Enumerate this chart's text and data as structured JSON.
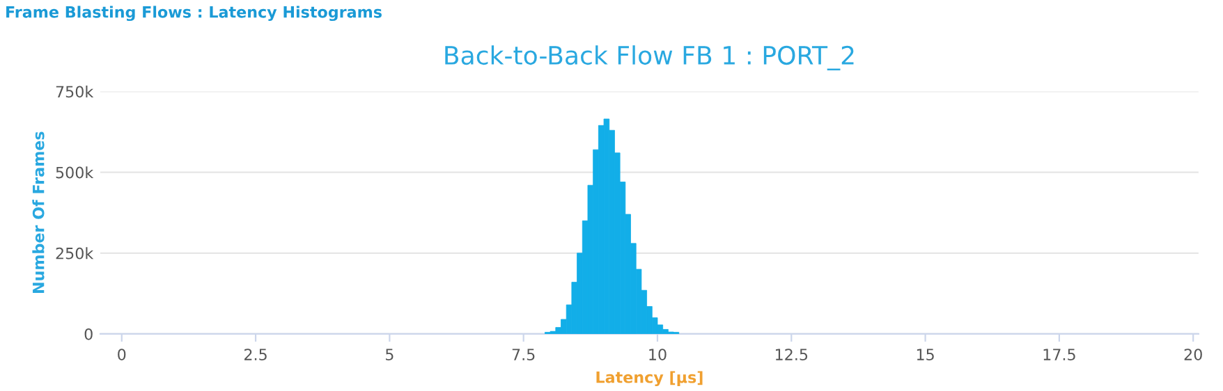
{
  "chart_data": {
    "type": "histogram",
    "title": "Back-to-Back Flow FB 1 : PORT_2",
    "xlabel": "Latency [µs]",
    "ylabel": "Number Of Frames",
    "annotations": [
      "Frame Blasting Flows : Latency Histograms"
    ],
    "bins": [
      7.9,
      8.0,
      8.1,
      8.2,
      8.3,
      8.4,
      8.5,
      8.6,
      8.7,
      8.8,
      8.9,
      9.0,
      9.1,
      9.2,
      9.3,
      9.4,
      9.5,
      9.6,
      9.7,
      9.8,
      9.9,
      10.0,
      10.1,
      10.2,
      10.3,
      10.4
    ],
    "values": [
      5000,
      8000,
      20000,
      45000,
      90000,
      160000,
      250000,
      350000,
      460000,
      570000,
      645000,
      665000,
      630000,
      560000,
      470000,
      370000,
      280000,
      200000,
      135000,
      85000,
      50000,
      28000,
      14000,
      6000,
      5000
    ],
    "color": "#12aee8",
    "xlim": [
      -0.4,
      20.1
    ],
    "xticks": [
      0,
      2.5,
      5,
      7.5,
      10,
      12.5,
      15,
      17.5,
      20
    ],
    "ylim": [
      0,
      750000
    ],
    "yticks": [
      {
        "value": 0,
        "label": "0"
      },
      {
        "value": 250000,
        "label": "250k"
      },
      {
        "value": 500000,
        "label": "500k"
      },
      {
        "value": 750000,
        "label": "750k"
      }
    ],
    "grid": "y",
    "legend": false
  }
}
